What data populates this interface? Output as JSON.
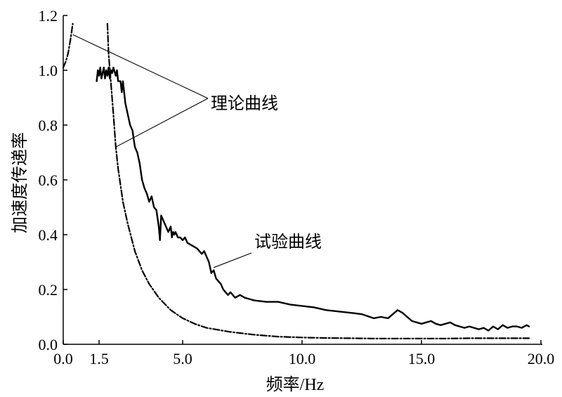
{
  "chart_data": {
    "type": "line",
    "xlabel": "频率/Hz",
    "ylabel": "加速度传递率",
    "xlim": [
      0,
      20
    ],
    "ylim": [
      0,
      1.2
    ],
    "x_ticks": [
      0.0,
      1.5,
      5.0,
      10.0,
      15.0,
      20.0
    ],
    "x_tick_labels": [
      "0.0",
      "1.5",
      "5.0",
      "10.0",
      "15.0",
      "20.0"
    ],
    "y_ticks": [
      0.0,
      0.2,
      0.4,
      0.6,
      0.8,
      1.0,
      1.2
    ],
    "y_tick_labels": [
      "0.0",
      "0.2",
      "0.4",
      "0.6",
      "0.8",
      "1.0",
      "1.2"
    ],
    "grid": false,
    "legend": "none",
    "annotations": [
      {
        "text": "理论曲线",
        "targets": [
          [
            0.4,
            1.13
          ],
          [
            2.2,
            0.72
          ]
        ]
      },
      {
        "text": "试验曲线",
        "targets": [
          [
            6.3,
            0.28
          ]
        ]
      }
    ],
    "series": [
      {
        "style": "dash-dot",
        "segments": [
          {
            "x": [
              0.0,
              0.1,
              0.2,
              0.3,
              0.4
            ],
            "y": [
              1.01,
              1.03,
              1.06,
              1.11,
              1.17
            ]
          },
          {
            "x": [
              1.85,
              1.9,
              2.0,
              2.1,
              2.2,
              2.3,
              2.5,
              2.7,
              3.0,
              3.3,
              3.6,
              4.0,
              4.5,
              5.0,
              5.5,
              6.0,
              7.0,
              8.0,
              9.0,
              10.0,
              11.0,
              12.0,
              13.0,
              14.0,
              15.0,
              16.0,
              17.0,
              18.0,
              19.0,
              19.5
            ],
            "y": [
              1.17,
              1.06,
              0.95,
              0.84,
              0.72,
              0.64,
              0.52,
              0.44,
              0.34,
              0.27,
              0.22,
              0.17,
              0.125,
              0.095,
              0.075,
              0.06,
              0.045,
              0.035,
              0.028,
              0.025,
              0.023,
              0.022,
              0.021,
              0.021,
              0.021,
              0.021,
              0.022,
              0.022,
              0.022,
              0.022
            ]
          }
        ]
      },
      {
        "style": "solid",
        "segments": [
          {
            "x": [
              1.4,
              1.45,
              1.5,
              1.55,
              1.6,
              1.7,
              1.75,
              1.8,
              1.85,
              1.9,
              1.95,
              2.0,
              2.05,
              2.1,
              2.2,
              2.25,
              2.3,
              2.4,
              2.45,
              2.5,
              2.6,
              2.7,
              2.8,
              2.9,
              3.0,
              3.1,
              3.2,
              3.3,
              3.4,
              3.5,
              3.6,
              3.7,
              3.8,
              3.9,
              4.0,
              4.05,
              4.1,
              4.2,
              4.3,
              4.4,
              4.5,
              4.55,
              4.6,
              4.65,
              4.7,
              4.8,
              4.9,
              5.0,
              5.1,
              5.2,
              5.4,
              5.6,
              5.8,
              5.9,
              6.0,
              6.1,
              6.2,
              6.3,
              6.4,
              6.5,
              6.6,
              6.7,
              6.8,
              6.9,
              7.0,
              7.2,
              7.4,
              7.6,
              7.8,
              8.0,
              8.5,
              9.0,
              9.5,
              10.0,
              10.5,
              11.0,
              11.5,
              12.0,
              12.5,
              13.0,
              13.3,
              13.6,
              13.8,
              14.0,
              14.2,
              14.4,
              14.6,
              14.8,
              15.0,
              15.2,
              15.4,
              15.6,
              15.8,
              16.0,
              16.2,
              16.4,
              16.6,
              16.8,
              17.0,
              17.2,
              17.4,
              17.6,
              17.8,
              18.0,
              18.2,
              18.4,
              18.6,
              18.8,
              19.0,
              19.2,
              19.4,
              19.5
            ],
            "y": [
              0.96,
              1.0,
              0.98,
              1.01,
              0.97,
              1.01,
              0.97,
              1.0,
              0.98,
              1.01,
              0.97,
              1.0,
              0.99,
              1.01,
              0.98,
              1.0,
              0.96,
              0.96,
              0.92,
              0.96,
              0.88,
              0.84,
              0.8,
              0.78,
              0.72,
              0.7,
              0.66,
              0.6,
              0.57,
              0.55,
              0.52,
              0.54,
              0.5,
              0.49,
              0.43,
              0.38,
              0.47,
              0.45,
              0.43,
              0.41,
              0.43,
              0.39,
              0.41,
              0.4,
              0.41,
              0.39,
              0.39,
              0.38,
              0.39,
              0.37,
              0.36,
              0.35,
              0.33,
              0.34,
              0.32,
              0.3,
              0.26,
              0.27,
              0.24,
              0.23,
              0.22,
              0.2,
              0.19,
              0.18,
              0.19,
              0.17,
              0.18,
              0.17,
              0.165,
              0.16,
              0.155,
              0.155,
              0.145,
              0.14,
              0.135,
              0.125,
              0.12,
              0.115,
              0.11,
              0.095,
              0.1,
              0.095,
              0.11,
              0.125,
              0.115,
              0.1,
              0.085,
              0.08,
              0.075,
              0.08,
              0.085,
              0.075,
              0.07,
              0.075,
              0.08,
              0.07,
              0.065,
              0.06,
              0.065,
              0.06,
              0.055,
              0.06,
              0.05,
              0.065,
              0.055,
              0.07,
              0.06,
              0.065,
              0.065,
              0.06,
              0.07,
              0.065
            ]
          }
        ]
      }
    ]
  }
}
